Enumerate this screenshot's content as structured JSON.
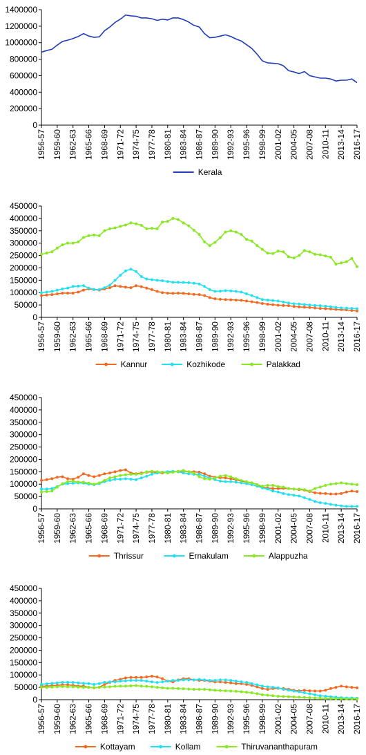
{
  "chart_data": [
    {
      "type": "line",
      "x": [
        "1956-57",
        "1957-58",
        "1958-59",
        "1959-60",
        "1960-61",
        "1961-62",
        "1962-63",
        "1963-64",
        "1964-65",
        "1965-66",
        "1966-67",
        "1967-68",
        "1968-69",
        "1969-70",
        "1970-71",
        "1971-72",
        "1972-73",
        "1973-74",
        "1974-75",
        "1975-76",
        "1976-77",
        "1977-78",
        "1978-79",
        "1979-80",
        "1980-81",
        "1981-82",
        "1982-83",
        "1983-84",
        "1984-85",
        "1985-86",
        "1986-87",
        "1987-88",
        "1988-89",
        "1989-90",
        "1990-91",
        "1991-92",
        "1992-93",
        "1993-94",
        "1994-95",
        "1995-96",
        "1996-97",
        "1997-98",
        "1998-99",
        "1999-00",
        "2000-01",
        "2001-02",
        "2002-03",
        "2003-04",
        "2004-05",
        "2005-06",
        "2006-07",
        "2007-08",
        "2008-09",
        "2009-10",
        "2010-11",
        "2011-12",
        "2012-13",
        "2013-14",
        "2014-15",
        "2015-16",
        "2016-17"
      ],
      "x_tick_labels": [
        "1956-57",
        "1959-60",
        "1962-63",
        "1965-66",
        "1968-69",
        "1971-72",
        "1974-75",
        "1977-78",
        "1980-81",
        "1983-84",
        "1986-87",
        "1989-90",
        "1992-93",
        "1995-96",
        "1998-99",
        "2001-02",
        "2004-05",
        "2007-08",
        "2010-11",
        "2013-14",
        "2016-17"
      ],
      "y_ticks": [
        "0",
        "200000",
        "400000",
        "600000",
        "800000",
        "1000000",
        "1200000",
        "1400000"
      ],
      "ylim": [
        0,
        1400000
      ],
      "legend_position": "bottom",
      "series": [
        {
          "name": "Kerala",
          "color": "#1f3db8",
          "marker": "none",
          "values": [
            885000,
            905000,
            920000,
            970000,
            1015000,
            1030000,
            1050000,
            1075000,
            1110000,
            1080000,
            1065000,
            1070000,
            1145000,
            1190000,
            1245000,
            1285000,
            1335000,
            1325000,
            1320000,
            1300000,
            1300000,
            1290000,
            1270000,
            1285000,
            1275000,
            1300000,
            1300000,
            1280000,
            1250000,
            1210000,
            1190000,
            1110000,
            1060000,
            1065000,
            1080000,
            1095000,
            1075000,
            1045000,
            1020000,
            975000,
            930000,
            860000,
            780000,
            755000,
            750000,
            745000,
            720000,
            660000,
            645000,
            625000,
            650000,
            600000,
            585000,
            570000,
            570000,
            560000,
            535000,
            545000,
            545000,
            560000,
            515000
          ]
        }
      ]
    },
    {
      "type": "line",
      "x_tick_labels": [
        "1956-57",
        "1959-60",
        "1962-63",
        "1965-66",
        "1968-69",
        "1971-72",
        "1974-75",
        "1977-78",
        "1980-81",
        "1983-84",
        "1986-87",
        "1989-90",
        "1992-93",
        "1995-96",
        "1998-99",
        "2001-02",
        "2004-05",
        "2007-08",
        "2010-11",
        "2013-14",
        "2016-17"
      ],
      "y_ticks": [
        "0",
        "50000",
        "100000",
        "150000",
        "200000",
        "250000",
        "300000",
        "350000",
        "400000",
        "450000"
      ],
      "ylim": [
        0,
        450000
      ],
      "legend_position": "bottom",
      "series": [
        {
          "name": "Kannur",
          "color": "#f26a21",
          "marker": "circle",
          "values": [
            88000,
            90000,
            92000,
            95000,
            98000,
            98000,
            98000,
            102000,
            110000,
            115000,
            112000,
            110000,
            115000,
            120000,
            128000,
            125000,
            122000,
            120000,
            128000,
            124000,
            118000,
            112000,
            105000,
            100000,
            98000,
            97000,
            98000,
            97000,
            95000,
            93000,
            92000,
            88000,
            80000,
            75000,
            73000,
            72000,
            71000,
            70000,
            69000,
            66000,
            63000,
            60000,
            56000,
            53000,
            51000,
            49000,
            48000,
            47000,
            44000,
            42000,
            41000,
            40000,
            38000,
            36000,
            35000,
            34000,
            32000,
            31000,
            30000,
            28000,
            26000
          ]
        },
        {
          "name": "Kozhikode",
          "color": "#22e0f0",
          "marker": "circle",
          "values": [
            100000,
            102000,
            105000,
            110000,
            115000,
            118000,
            125000,
            126000,
            128000,
            118000,
            113000,
            112000,
            120000,
            130000,
            150000,
            170000,
            188000,
            195000,
            185000,
            165000,
            155000,
            152000,
            150000,
            148000,
            145000,
            142000,
            142000,
            141000,
            140000,
            138000,
            135000,
            125000,
            112000,
            105000,
            106000,
            108000,
            107000,
            105000,
            102000,
            95000,
            88000,
            80000,
            72000,
            70000,
            68000,
            66000,
            62000,
            58000,
            55000,
            54000,
            52000,
            50000,
            48000,
            47000,
            45000,
            43000,
            40000,
            38000,
            37000,
            36000,
            35000
          ]
        },
        {
          "name": "Palakkad",
          "color": "#88e822",
          "marker": "circle",
          "values": [
            255000,
            260000,
            265000,
            280000,
            293000,
            300000,
            300000,
            305000,
            323000,
            330000,
            333000,
            330000,
            350000,
            358000,
            362000,
            368000,
            373000,
            382000,
            378000,
            372000,
            358000,
            360000,
            358000,
            385000,
            388000,
            400000,
            395000,
            382000,
            370000,
            352000,
            335000,
            305000,
            290000,
            303000,
            322000,
            345000,
            350000,
            345000,
            335000,
            315000,
            308000,
            290000,
            275000,
            260000,
            258000,
            268000,
            265000,
            245000,
            240000,
            250000,
            270000,
            265000,
            255000,
            253000,
            248000,
            243000,
            215000,
            220000,
            225000,
            238000,
            205000
          ]
        }
      ]
    },
    {
      "type": "line",
      "x_tick_labels": [
        "1956-57",
        "1959-60",
        "1962-63",
        "1965-66",
        "1968-69",
        "1971-72",
        "1974-75",
        "1977-78",
        "1980-81",
        "1983-84",
        "1986-87",
        "1989-90",
        "1992-93",
        "1995-96",
        "1998-99",
        "2001-02",
        "2004-05",
        "2007-08",
        "2010-11",
        "2013-14",
        "2016-17"
      ],
      "y_ticks": [
        "0",
        "50000",
        "100000",
        "150000",
        "200000",
        "250000",
        "300000",
        "350000",
        "400000",
        "450000"
      ],
      "ylim": [
        0,
        450000
      ],
      "legend_position": "bottom",
      "series": [
        {
          "name": "Thrissur",
          "color": "#f26a21",
          "marker": "circle",
          "values": [
            115000,
            118000,
            122000,
            128000,
            130000,
            122000,
            120000,
            128000,
            142000,
            135000,
            130000,
            135000,
            142000,
            145000,
            150000,
            155000,
            158000,
            145000,
            142000,
            145000,
            148000,
            150000,
            146000,
            145000,
            148000,
            150000,
            150000,
            152000,
            150000,
            150000,
            148000,
            142000,
            132000,
            128000,
            126000,
            125000,
            122000,
            118000,
            112000,
            108000,
            105000,
            98000,
            88000,
            84000,
            82000,
            82000,
            83000,
            82000,
            80000,
            78000,
            76000,
            70000,
            65000,
            63000,
            62000,
            60000,
            60000,
            62000,
            68000,
            72000,
            70000
          ]
        },
        {
          "name": "Ernakulam",
          "color": "#22e0f0",
          "marker": "circle",
          "values": [
            80000,
            80000,
            82000,
            90000,
            100000,
            102000,
            104000,
            105000,
            104000,
            100000,
            98000,
            102000,
            110000,
            115000,
            120000,
            120000,
            122000,
            120000,
            118000,
            125000,
            132000,
            140000,
            145000,
            148000,
            150000,
            152000,
            150000,
            145000,
            142000,
            140000,
            140000,
            132000,
            125000,
            118000,
            112000,
            110000,
            110000,
            108000,
            105000,
            102000,
            98000,
            92000,
            85000,
            80000,
            72000,
            68000,
            62000,
            58000,
            55000,
            52000,
            45000,
            38000,
            30000,
            25000,
            22000,
            18000,
            15000,
            12000,
            10000,
            10000,
            10000
          ]
        },
        {
          "name": "Alappuzha",
          "color": "#88e822",
          "marker": "circle",
          "values": [
            68000,
            70000,
            72000,
            88000,
            102000,
            110000,
            112000,
            108000,
            108000,
            104000,
            100000,
            105000,
            115000,
            125000,
            130000,
            135000,
            138000,
            140000,
            140000,
            142000,
            150000,
            152000,
            150000,
            148000,
            145000,
            148000,
            152000,
            155000,
            150000,
            145000,
            130000,
            122000,
            120000,
            125000,
            132000,
            135000,
            130000,
            122000,
            115000,
            110000,
            105000,
            98000,
            92000,
            95000,
            95000,
            90000,
            88000,
            82000,
            80000,
            80000,
            78000,
            72000,
            82000,
            88000,
            95000,
            100000,
            102000,
            105000,
            102000,
            100000,
            98000
          ]
        }
      ]
    },
    {
      "type": "line",
      "x_tick_labels": [
        "1956-57",
        "1959-60",
        "1962-63",
        "1965-66",
        "1968-69",
        "1971-72",
        "1974-75",
        "1977-78",
        "1980-81",
        "1983-84",
        "1986-87",
        "1989-90",
        "1992-93",
        "1995-96",
        "1998-99",
        "2001-02",
        "2004-05",
        "2007-08",
        "2010-11",
        "2013-14",
        "2016-17"
      ],
      "y_ticks": [
        "0",
        "50000",
        "100000",
        "150000",
        "200000",
        "250000",
        "300000",
        "350000",
        "400000",
        "450000"
      ],
      "ylim": [
        0,
        450000
      ],
      "legend_position": "bottom",
      "series": [
        {
          "name": "Kottayam",
          "color": "#f26a21",
          "marker": "circle",
          "values": [
            55000,
            55000,
            57000,
            58000,
            60000,
            60000,
            58000,
            55000,
            55000,
            50000,
            48000,
            50000,
            62000,
            70000,
            78000,
            82000,
            88000,
            90000,
            90000,
            90000,
            92000,
            95000,
            92000,
            85000,
            75000,
            72000,
            80000,
            85000,
            85000,
            80000,
            78000,
            78000,
            75000,
            72000,
            72000,
            70000,
            68000,
            65000,
            65000,
            62000,
            58000,
            52000,
            45000,
            42000,
            45000,
            46000,
            45000,
            42000,
            38000,
            36000,
            38000,
            36000,
            35000,
            35000,
            38000,
            45000,
            50000,
            55000,
            52000,
            50000,
            48000
          ]
        },
        {
          "name": "Kollam",
          "color": "#22e0f0",
          "marker": "circle",
          "values": [
            62000,
            64000,
            66000,
            68000,
            70000,
            70000,
            70000,
            68000,
            66000,
            65000,
            62000,
            65000,
            70000,
            72000,
            72000,
            75000,
            76000,
            78000,
            78000,
            78000,
            75000,
            72000,
            70000,
            72000,
            75000,
            78000,
            78000,
            80000,
            80000,
            80000,
            82000,
            80000,
            78000,
            78000,
            80000,
            80000,
            78000,
            75000,
            72000,
            70000,
            65000,
            60000,
            55000,
            52000,
            50000,
            48000,
            42000,
            38000,
            35000,
            32000,
            28000,
            24000,
            20000,
            16000,
            14000,
            12000,
            10000,
            8000,
            7000,
            7000,
            6000
          ]
        },
        {
          "name": "Thiruvananthapuram",
          "color": "#88e822",
          "marker": "circle",
          "values": [
            50000,
            50000,
            51000,
            52000,
            53000,
            52000,
            52000,
            51000,
            50000,
            50000,
            49000,
            50000,
            51000,
            52000,
            54000,
            55000,
            55000,
            56000,
            57000,
            55000,
            54000,
            52000,
            50000,
            48000,
            46000,
            46000,
            45000,
            44000,
            43000,
            42000,
            42000,
            42000,
            40000,
            38000,
            37000,
            36000,
            35000,
            34000,
            32000,
            30000,
            28000,
            24000,
            20000,
            18000,
            16000,
            14000,
            13000,
            12000,
            11000,
            10000,
            9000,
            8000,
            7000,
            6000,
            5000,
            5000,
            4000,
            4000,
            3000,
            3000,
            3000
          ]
        }
      ]
    }
  ]
}
